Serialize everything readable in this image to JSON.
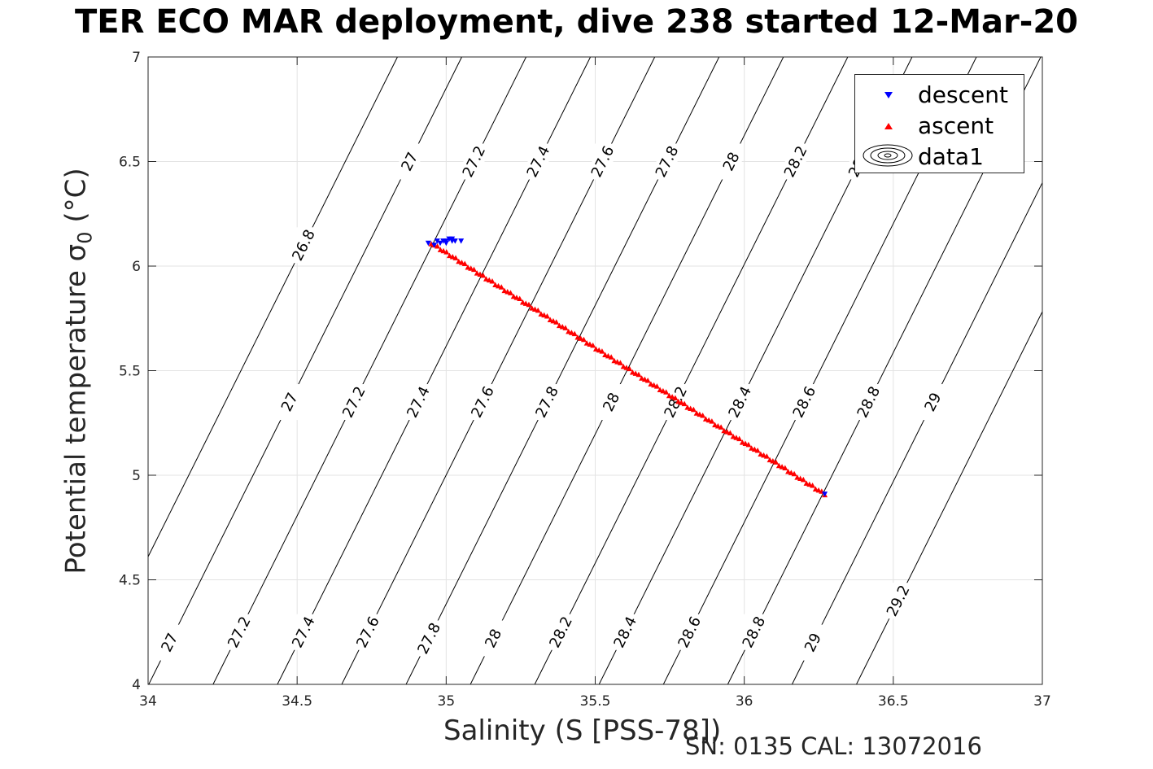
{
  "chart_data": {
    "type": "scatter",
    "title": "TER ECO MAR deployment, dive 238 started 12-Mar-20",
    "xlabel": "Salinity (S [PSS-78])",
    "ylabel_text": "Potential temperature ",
    "ylabel_symbol": "σ",
    "ylabel_subscript": "0",
    "ylabel_unit": " (°C)",
    "footer": "SN: 0135  CAL: 13072016",
    "xlim": [
      34,
      37
    ],
    "ylim": [
      4,
      7
    ],
    "xticks": [
      34,
      34.5,
      35,
      35.5,
      36,
      36.5,
      37
    ],
    "yticks": [
      4,
      4.5,
      5,
      5.5,
      6,
      6.5,
      7
    ],
    "xtick_labels": [
      "34",
      "34.5",
      "35",
      "35.5",
      "36",
      "36.5",
      "37"
    ],
    "ytick_labels": [
      "4",
      "4.5",
      "5",
      "5.5",
      "6",
      "6.5",
      "7"
    ],
    "grid": true,
    "legend_position": "top-right",
    "contours": {
      "levels": [
        26.8,
        27,
        27.2,
        27.4,
        27.6,
        27.8,
        28,
        28.2,
        28.4,
        28.6,
        28.8,
        29,
        29.2
      ],
      "label_texts": {
        "26.8": "26.8",
        "27": "27",
        "27.2": "27.2",
        "27.4": "27.4",
        "27.6": "27.6",
        "27.8": "27.8",
        "28": "28",
        "28.2": "28.2",
        "28.4": "28.4",
        "28.6": "28.6",
        "28.8": "28.8",
        "29": "29",
        "29.2": "29.2"
      },
      "labels": [
        {
          "level": 26.8,
          "at_t": 6.1
        },
        {
          "level": 27,
          "at_t": 6.5
        },
        {
          "level": 27.2,
          "at_t": 6.5
        },
        {
          "level": 27.4,
          "at_t": 6.5
        },
        {
          "level": 27.6,
          "at_t": 6.5
        },
        {
          "level": 27.8,
          "at_t": 6.5
        },
        {
          "level": 28,
          "at_t": 6.5
        },
        {
          "level": 28.2,
          "at_t": 6.5
        },
        {
          "level": 28.4,
          "at_t": 6.5
        },
        {
          "level": 27,
          "at_t": 5.35
        },
        {
          "level": 27.2,
          "at_t": 5.35
        },
        {
          "level": 27.4,
          "at_t": 5.35
        },
        {
          "level": 27.6,
          "at_t": 5.35
        },
        {
          "level": 27.8,
          "at_t": 5.35
        },
        {
          "level": 28,
          "at_t": 5.35
        },
        {
          "level": 28.2,
          "at_t": 5.35
        },
        {
          "level": 28.4,
          "at_t": 5.35
        },
        {
          "level": 28.6,
          "at_t": 5.35
        },
        {
          "level": 28.8,
          "at_t": 5.35
        },
        {
          "level": 29,
          "at_t": 5.35
        },
        {
          "level": 27,
          "at_t": 4.2
        },
        {
          "level": 27.2,
          "at_t": 4.25
        },
        {
          "level": 27.4,
          "at_t": 4.25
        },
        {
          "level": 27.6,
          "at_t": 4.25
        },
        {
          "level": 27.8,
          "at_t": 4.22
        },
        {
          "level": 28,
          "at_t": 4.22
        },
        {
          "level": 28.2,
          "at_t": 4.25
        },
        {
          "level": 28.4,
          "at_t": 4.25
        },
        {
          "level": 28.6,
          "at_t": 4.25
        },
        {
          "level": 28.8,
          "at_t": 4.25
        },
        {
          "level": 29,
          "at_t": 4.2
        },
        {
          "level": 29.2,
          "at_t": 4.4
        }
      ]
    },
    "series": [
      {
        "name": "descent",
        "marker": "triangle-down",
        "color": "#0000ff",
        "points": [
          [
            34.94,
            6.11
          ],
          [
            34.96,
            6.1
          ],
          [
            34.98,
            6.11
          ],
          [
            34.99,
            6.12
          ],
          [
            35.0,
            6.11
          ],
          [
            35.0,
            6.12
          ],
          [
            35.01,
            6.13
          ],
          [
            35.02,
            6.12
          ],
          [
            35.02,
            6.13
          ],
          [
            35.03,
            6.12
          ],
          [
            34.97,
            6.12
          ],
          [
            35.05,
            6.12
          ],
          [
            36.27,
            4.91
          ]
        ]
      },
      {
        "name": "ascent",
        "marker": "triangle-up",
        "color": "#ff0000",
        "start": [
          34.95,
          6.11
        ],
        "end": [
          36.27,
          4.91
        ],
        "count": 130
      },
      {
        "name": "data1",
        "marker": "contour-ellipse",
        "color": "#000000"
      }
    ]
  }
}
